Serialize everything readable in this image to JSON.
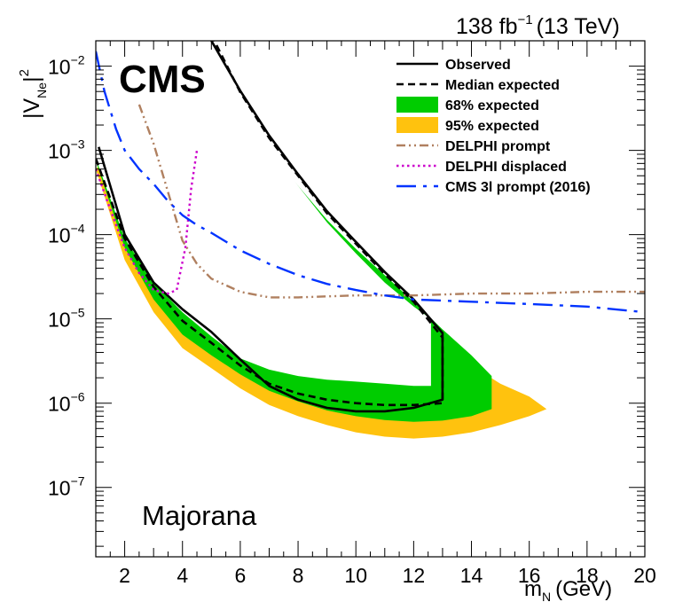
{
  "header": {
    "luminosity_value": "138 fb",
    "luminosity_exp": "−1",
    "energy": "(13 TeV)"
  },
  "experiment_label": "CMS",
  "scenario_label": "Majorana",
  "axes": {
    "x_label_main": "m",
    "x_label_sub": "N",
    "x_label_unit": "(GeV)",
    "y_label_main": "|V",
    "y_label_sub": "Ne",
    "y_label_end": "|",
    "y_label_sup": "2"
  },
  "chart_data": {
    "type": "line",
    "xlabel": "m_N (GeV)",
    "ylabel": "|V_Ne|^2",
    "xlim": [
      1,
      20
    ],
    "ylim": [
      1.5e-08,
      0.02
    ],
    "yscale": "log",
    "x_ticks": [
      2,
      4,
      6,
      8,
      10,
      12,
      14,
      16,
      18,
      20
    ],
    "y_ticks": [
      {
        "value": 1e-07,
        "mant": "10",
        "exp": "−7"
      },
      {
        "value": 1e-06,
        "mant": "10",
        "exp": "−6"
      },
      {
        "value": 1e-05,
        "mant": "10",
        "exp": "−5"
      },
      {
        "value": 0.0001,
        "mant": "10",
        "exp": "−4"
      },
      {
        "value": 0.001,
        "mant": "10",
        "exp": "−3"
      },
      {
        "value": 0.01,
        "mant": "10",
        "exp": "−2"
      }
    ],
    "legend_position": "top-right",
    "series": [
      {
        "name": "95% expected",
        "kind": "band",
        "color": "#ffc20e",
        "lower_branch": [
          [
            1,
            0.0006
          ],
          [
            2,
            5e-05
          ],
          [
            3,
            1.2e-05
          ],
          [
            4,
            4.5e-06
          ],
          [
            5,
            2.6e-06
          ],
          [
            6,
            1.5e-06
          ],
          [
            7,
            9.5e-07
          ],
          [
            8,
            7e-07
          ],
          [
            9,
            5.5e-07
          ],
          [
            10,
            4.5e-07
          ],
          [
            11,
            4e-07
          ],
          [
            12,
            3.8e-07
          ],
          [
            13,
            4e-07
          ],
          [
            14,
            4.5e-07
          ],
          [
            15,
            5.5e-07
          ],
          [
            16,
            7e-07
          ]
        ],
        "upper_branch": [
          [
            5.1,
            0.02
          ],
          [
            6,
            0.0025
          ],
          [
            7,
            0.00075
          ],
          [
            8,
            0.00028
          ],
          [
            9,
            0.00011
          ],
          [
            10,
            5e-05
          ],
          [
            11,
            2.5e-05
          ],
          [
            12,
            1.2e-05
          ],
          [
            13,
            5.5e-06
          ],
          [
            14,
            2.8e-06
          ],
          [
            15,
            1.7e-06
          ],
          [
            16,
            1.2e-06
          ],
          [
            16.6,
            8.5e-07
          ]
        ],
        "inner_gap_branch": [
          [
            1,
            0.0009
          ],
          [
            2,
            0.00011
          ],
          [
            3,
            3.5e-05
          ],
          [
            4,
            1.7e-05
          ],
          [
            5,
            8.5e-06
          ],
          [
            6,
            4.5e-06
          ],
          [
            7,
            3.6e-06
          ],
          [
            8,
            3.3e-06
          ],
          [
            9,
            3.1e-06
          ],
          [
            10,
            3.3e-06
          ],
          [
            11.3,
            3e-06
          ],
          [
            11.3,
            1.2e-05
          ],
          [
            12,
            1.8e-05
          ],
          [
            11,
            3.5e-05
          ],
          [
            10,
            8e-05
          ],
          [
            9,
            0.0002
          ],
          [
            8,
            0.00055
          ],
          [
            7,
            0.0016
          ],
          [
            6,
            0.0055
          ],
          [
            5.4,
            0.02
          ]
        ]
      },
      {
        "name": "68% expected",
        "kind": "band",
        "color": "#00cc00",
        "lower_branch": [
          [
            1,
            0.00075
          ],
          [
            2,
            7e-05
          ],
          [
            3,
            1.7e-05
          ],
          [
            4,
            6.5e-06
          ],
          [
            5,
            3.7e-06
          ],
          [
            6,
            2.2e-06
          ],
          [
            7,
            1.4e-06
          ],
          [
            8,
            1.05e-06
          ],
          [
            9,
            8.2e-07
          ],
          [
            10,
            7e-07
          ],
          [
            11,
            6.3e-07
          ],
          [
            12,
            6e-07
          ],
          [
            13,
            6.2e-07
          ],
          [
            14,
            7e-07
          ],
          [
            14.7,
            8.5e-07
          ]
        ],
        "upper_branch": [
          [
            5.2,
            0.02
          ],
          [
            6,
            0.0033
          ],
          [
            7,
            0.001
          ],
          [
            8,
            0.00038
          ],
          [
            9,
            0.00015
          ],
          [
            10,
            6.8e-05
          ],
          [
            11,
            3.3e-05
          ],
          [
            12,
            1.6e-05
          ],
          [
            13,
            7.5e-06
          ],
          [
            14,
            3.7e-06
          ],
          [
            14.7,
            2.1e-06
          ]
        ],
        "inner_gap_branch": [
          [
            1,
            0.0008
          ],
          [
            2,
            9e-05
          ],
          [
            3,
            2.7e-05
          ],
          [
            4,
            1.2e-05
          ],
          [
            5,
            6.2e-06
          ],
          [
            6,
            3.4e-06
          ],
          [
            7,
            2.5e-06
          ],
          [
            8,
            2.1e-06
          ],
          [
            9,
            1.9e-06
          ],
          [
            10,
            1.8e-06
          ],
          [
            11,
            1.7e-06
          ],
          [
            12,
            1.6e-06
          ],
          [
            12.6,
            1.6e-06
          ],
          [
            12.6,
            1e-05
          ],
          [
            12,
            1.4e-05
          ],
          [
            11,
            2.7e-05
          ],
          [
            10,
            6e-05
          ],
          [
            9,
            0.00014
          ],
          [
            8,
            0.00038
          ],
          [
            7,
            0.0011
          ],
          [
            6,
            0.0038
          ],
          [
            5.3,
            0.02
          ]
        ]
      },
      {
        "name": "Observed",
        "kind": "line",
        "color": "#000000",
        "dash": "solid",
        "points": [
          [
            1.1,
            0.0011
          ],
          [
            2,
            0.0001
          ],
          [
            3,
            2.7e-05
          ],
          [
            4,
            1.3e-05
          ],
          [
            5,
            7e-06
          ],
          [
            6,
            3.3e-06
          ],
          [
            7,
            1.6e-06
          ],
          [
            8,
            1.1e-06
          ],
          [
            9,
            8.8e-07
          ],
          [
            10,
            8e-07
          ],
          [
            11,
            8e-07
          ],
          [
            12,
            8.8e-07
          ],
          [
            13,
            1.1e-06
          ],
          [
            13,
            6.8e-06
          ],
          [
            12,
            1.7e-05
          ],
          [
            11,
            3.6e-05
          ],
          [
            10,
            8.2e-05
          ],
          [
            9,
            0.00019
          ],
          [
            8,
            0.00052
          ],
          [
            7,
            0.0015
          ],
          [
            6,
            0.0051
          ],
          [
            5,
            0.02
          ]
        ]
      },
      {
        "name": "Median expected",
        "kind": "line",
        "color": "#000000",
        "dash": "dashed",
        "points": [
          [
            1,
            0.0008
          ],
          [
            2,
            9e-05
          ],
          [
            3,
            2.4e-05
          ],
          [
            4,
            9.5e-06
          ],
          [
            5,
            5.2e-06
          ],
          [
            6,
            2.8e-06
          ],
          [
            7,
            1.7e-06
          ],
          [
            8,
            1.3e-06
          ],
          [
            9,
            1.1e-06
          ],
          [
            10,
            1e-06
          ],
          [
            11,
            9.5e-07
          ],
          [
            12,
            9.5e-07
          ],
          [
            13,
            1e-06
          ],
          [
            13,
            6e-06
          ],
          [
            12,
            1.6e-05
          ],
          [
            11,
            3.4e-05
          ],
          [
            10,
            7.8e-05
          ],
          [
            9,
            0.00018
          ],
          [
            8,
            0.0005
          ],
          [
            7,
            0.0014
          ],
          [
            6,
            0.0049
          ],
          [
            5.1,
            0.02
          ]
        ]
      },
      {
        "name": "DELPHI prompt",
        "kind": "line",
        "color": "#b08060",
        "dash": "dash-dot-dot",
        "points": [
          [
            2.5,
            0.0035
          ],
          [
            3,
            0.0012
          ],
          [
            3.5,
            0.00032
          ],
          [
            4,
            8.5e-05
          ],
          [
            4.5,
            4.5e-05
          ],
          [
            5,
            3e-05
          ],
          [
            6,
            2.1e-05
          ],
          [
            7,
            1.8e-05
          ],
          [
            8,
            1.8e-05
          ],
          [
            10,
            1.9e-05
          ],
          [
            12,
            1.9e-05
          ],
          [
            14,
            2e-05
          ],
          [
            16,
            2e-05
          ],
          [
            18,
            2.1e-05
          ],
          [
            20,
            2.1e-05
          ]
        ]
      },
      {
        "name": "DELPHI displaced",
        "kind": "line",
        "color": "#cc00cc",
        "dash": "dotted",
        "points": [
          [
            1,
            0.0006
          ],
          [
            1.5,
            0.0002
          ],
          [
            2,
            7e-05
          ],
          [
            2.5,
            3.5e-05
          ],
          [
            3,
            2.2e-05
          ],
          [
            3.5,
            2e-05
          ],
          [
            3.8,
            2.2e-05
          ],
          [
            4.1,
            7e-05
          ],
          [
            4.3,
            0.00035
          ],
          [
            4.5,
            0.001
          ]
        ]
      },
      {
        "name": "CMS 3l prompt (2016)",
        "kind": "line",
        "color": "#0033ff",
        "dash": "long-dash-dot",
        "points": [
          [
            1,
            0.015
          ],
          [
            1.3,
            0.005
          ],
          [
            1.7,
            0.0018
          ],
          [
            2,
            0.001
          ],
          [
            2.5,
            0.0006
          ],
          [
            3,
            0.0004
          ],
          [
            3.5,
            0.00025
          ],
          [
            4,
            0.00017
          ],
          [
            4.5,
            0.00013
          ],
          [
            5,
            0.000105
          ],
          [
            6,
            6.5e-05
          ],
          [
            7,
            4.5e-05
          ],
          [
            8,
            3.3e-05
          ],
          [
            9,
            2.6e-05
          ],
          [
            10,
            2.2e-05
          ],
          [
            11,
            1.9e-05
          ],
          [
            12,
            1.7e-05
          ],
          [
            14,
            1.6e-05
          ],
          [
            16,
            1.5e-05
          ],
          [
            18,
            1.4e-05
          ],
          [
            20,
            1.2e-05
          ]
        ]
      }
    ]
  }
}
